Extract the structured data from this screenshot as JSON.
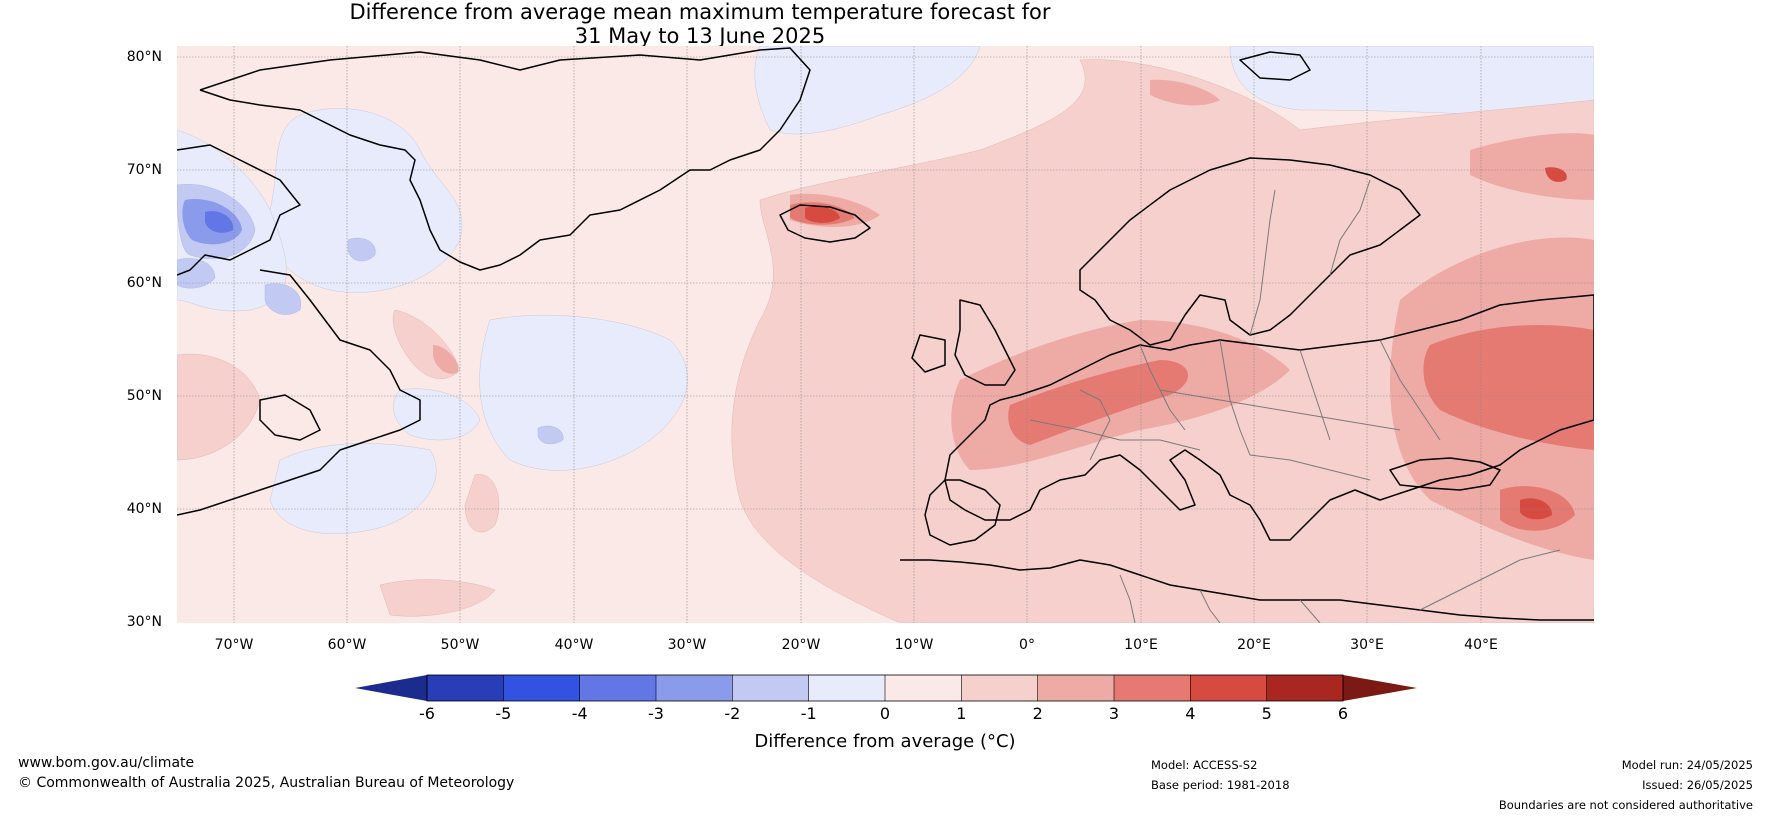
{
  "title": {
    "line1": "Difference from average mean maximum temperature forecast for",
    "line2": "31 May to 13 June 2025"
  },
  "axes": {
    "lat_labels": [
      "80°N",
      "70°N",
      "60°N",
      "50°N",
      "40°N",
      "30°N"
    ],
    "lon_labels": [
      "70°W",
      "60°W",
      "50°W",
      "40°W",
      "30°W",
      "20°W",
      "10°W",
      "0°",
      "10°E",
      "20°E",
      "30°E",
      "40°E"
    ]
  },
  "colorbar": {
    "label": "Difference from average (°C)",
    "tick_labels": [
      "-6",
      "-5",
      "-4",
      "-3",
      "-2",
      "-1",
      "0",
      "1",
      "2",
      "3",
      "4",
      "5",
      "6"
    ],
    "colors": [
      "#1b2c8e",
      "#2a3db8",
      "#3253e0",
      "#6276e6",
      "#8b9bec",
      "#c2caf4",
      "#e8ebfb",
      "#fbe9e7",
      "#f6d0cd",
      "#eeaaa5",
      "#e47a72",
      "#d64a40",
      "#aa2620",
      "#7a1a14"
    ]
  },
  "footer": {
    "website": "www.bom.gov.au/climate",
    "copyright": "© Commonwealth of Australia 2025, Australian Bureau of Meteorology",
    "model": "Model: ACCESS-S2",
    "base_period": "Base period: 1981-2018",
    "model_run": "Model run: 24/05/2025",
    "issued": "Issued: 26/05/2025",
    "disclaimer": "Boundaries are not considered authoritative"
  }
}
